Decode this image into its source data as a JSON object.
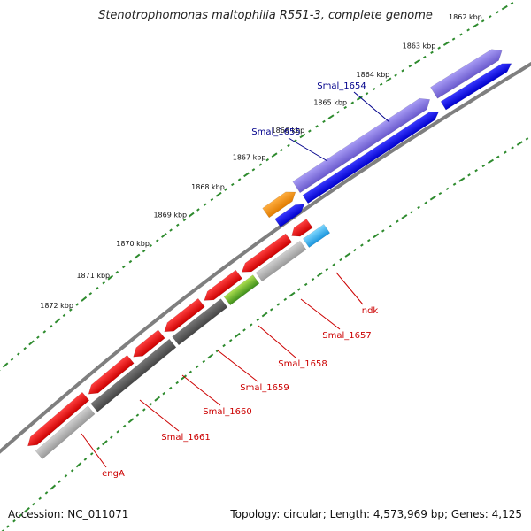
{
  "title": "Stenotrophomonas maltophilia R551-3, complete genome",
  "footer": {
    "accession_label": "Accession:",
    "accession": "NC_011071",
    "topology_label": "Topology:",
    "topology": "circular",
    "length_label": "Length:",
    "length": "4,573,969 bp",
    "genes_label": "Genes:",
    "genes": "4,125"
  },
  "colors": {
    "background": "#ffffff",
    "backbone": "#7f7f7f",
    "tick_dots": "#2e8b2e",
    "forward_label": "#00008b",
    "reverse_label": "#cc0000",
    "orange": "#ff8c00",
    "purple": "#7b68ee",
    "blue": "#0000ee",
    "red": "#ee0000",
    "gray": "#999999",
    "darkgray": "#555555",
    "green": "#66bb22",
    "cyan": "#22aaee"
  },
  "scale_ticks": [
    {
      "label": "1862 kbp"
    },
    {
      "label": "1863 kbp"
    },
    {
      "label": "1864 kbp"
    },
    {
      "label": "1865 kbp"
    },
    {
      "label": "1866 kbp"
    },
    {
      "label": "1867 kbp"
    },
    {
      "label": "1868 kbp"
    },
    {
      "label": "1869 kbp"
    },
    {
      "label": "1870 kbp"
    },
    {
      "label": "1871 kbp"
    },
    {
      "label": "1872 kbp"
    }
  ],
  "gene_labels": [
    {
      "name": "Smal_1654",
      "strand": "forward"
    },
    {
      "name": "Smal_1655",
      "strand": "forward"
    },
    {
      "name": "ndk",
      "strand": "reverse"
    },
    {
      "name": "Smal_1657",
      "strand": "reverse"
    },
    {
      "name": "Smal_1658",
      "strand": "reverse"
    },
    {
      "name": "Smal_1659",
      "strand": "reverse"
    },
    {
      "name": "Smal_1660",
      "strand": "reverse"
    },
    {
      "name": "Smal_1661",
      "strand": "reverse"
    },
    {
      "name": "engA",
      "strand": "reverse"
    }
  ]
}
